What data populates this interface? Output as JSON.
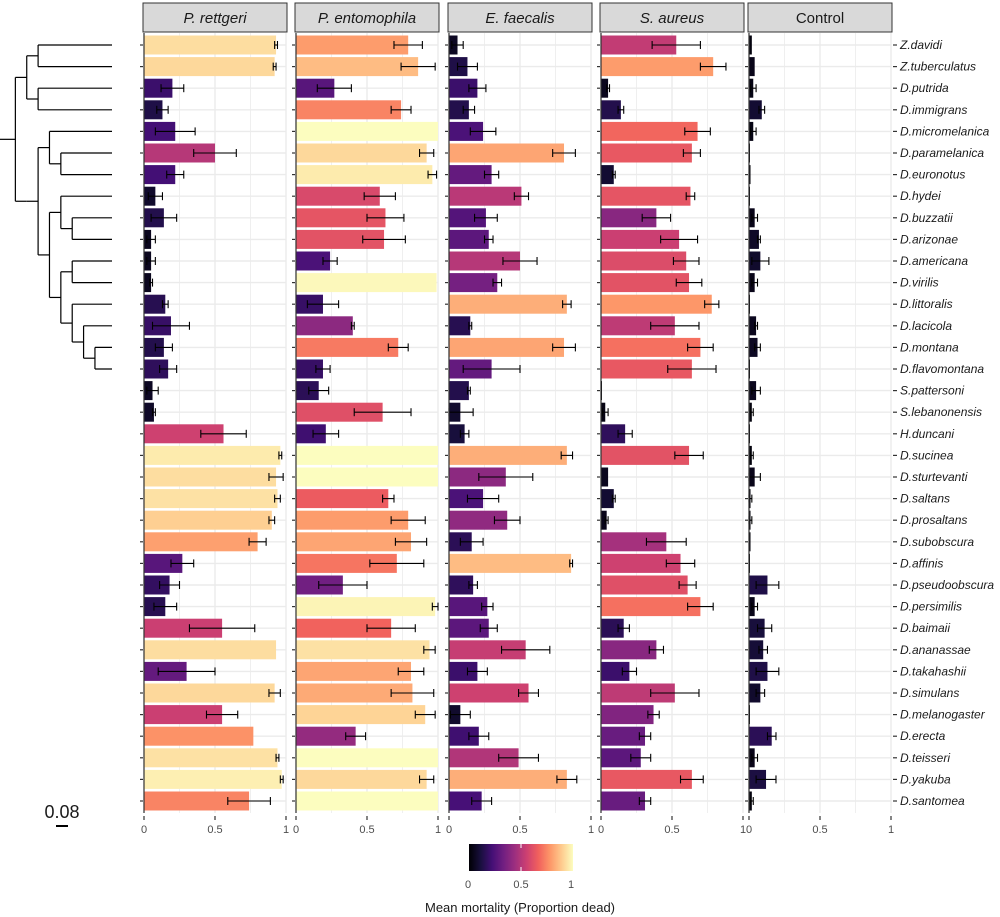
{
  "chart_data": {
    "type": "bar",
    "orientation": "horizontal",
    "xlabel": "",
    "xlim": [
      0,
      1
    ],
    "x_ticks": [
      "0",
      "0.5",
      "1"
    ],
    "grid": true,
    "legend": {
      "title": "Mean mortality (Proportion dead)",
      "type": "colorbar",
      "palette": "magma",
      "range": [
        0,
        1
      ],
      "ticks": [
        "0",
        "0.5",
        "1"
      ],
      "placement": "bottom-center",
      "stops": [
        "#000004",
        "#180f3d",
        "#440f76",
        "#721f81",
        "#9e2f7f",
        "#cd4071",
        "#f1605d",
        "#fd9668",
        "#feca8d",
        "#fcfdbf"
      ]
    },
    "tree_scale_label": "0.08",
    "tree": [
      "((((Z.davidi,Z.tuberculatus),(D.putrida,D.immigrans)),(((D.micromelanica,(D.paramelanica,D.euronotus)),((D.hydei,(D.buzzatii,D.arizonae)),((D.americana,D.virilis),(D.littoralis,(D.lacicola,(D.montana,D.flavomontana))))))))),((S.pattersoni,S.lebanonensis),((H.duncani,(D.sucinea,(D.sturtevanti,(D.saltans,D.prosaltans)))),(((D.subobscura,(D.affinis,(D.pseudoobscura,D.persimilis))),(D.baimaii,(D.ananassae,(D.takahashii,((D.simulans,D.melanogaster),(D.erecta,(D.teisseri,(D.yakuba,D.santomea))))))))))))"
    ],
    "categories": [
      "Z.davidi",
      "Z.tuberculatus",
      "D.putrida",
      "D.immigrans",
      "D.micromelanica",
      "D.paramelanica",
      "D.euronotus",
      "D.hydei",
      "D.buzzatii",
      "D.arizonae",
      "D.americana",
      "D.virilis",
      "D.littoralis",
      "D.lacicola",
      "D.montana",
      "D.flavomontana",
      "S.pattersoni",
      "S.lebanonensis",
      "H.duncani",
      "D.sucinea",
      "D.sturtevanti",
      "D.saltans",
      "D.prosaltans",
      "D.subobscura",
      "D.affinis",
      "D.pseudoobscura",
      "D.persimilis",
      "D.baimaii",
      "D.ananassae",
      "D.takahashii",
      "D.simulans",
      "D.melanogaster",
      "D.erecta",
      "D.teisseri",
      "D.yakuba",
      "D.santomea"
    ],
    "panels": [
      {
        "name": "P. rettgeri",
        "italic": true,
        "values": [
          0.93,
          0.92,
          0.2,
          0.13,
          0.22,
          0.5,
          0.22,
          0.08,
          0.14,
          0.05,
          0.05,
          0.05,
          0.15,
          0.19,
          0.14,
          0.17,
          0.06,
          0.07,
          0.56,
          0.96,
          0.93,
          0.94,
          0.9,
          0.8,
          0.27,
          0.18,
          0.15,
          0.55,
          0.93,
          0.3,
          0.92,
          0.55,
          0.77,
          0.94,
          0.97,
          0.74
        ],
        "err": [
          0.01,
          0.01,
          0.08,
          0.04,
          0.14,
          0.15,
          0.06,
          0.05,
          0.09,
          0.03,
          0.03,
          0.01,
          0.02,
          0.13,
          0.06,
          0.06,
          0.04,
          0.01,
          0.16,
          0.01,
          0.05,
          0.02,
          0.02,
          0.06,
          0.08,
          0.07,
          0.08,
          0.23,
          0.0,
          0.2,
          0.04,
          0.11,
          0.0,
          0.01,
          0.01,
          0.15
        ]
      },
      {
        "name": "P. entomophila",
        "italic": true,
        "values": [
          0.79,
          0.86,
          0.27,
          0.74,
          1.0,
          0.92,
          0.96,
          0.59,
          0.63,
          0.62,
          0.24,
          0.99,
          0.19,
          0.4,
          0.72,
          0.19,
          0.16,
          0.61,
          0.21,
          1.0,
          1.0,
          0.65,
          0.79,
          0.81,
          0.71,
          0.33,
          0.98,
          0.67,
          0.94,
          0.81,
          0.82,
          0.91,
          0.42,
          1.0,
          0.92,
          1.0
        ],
        "err": [
          0.1,
          0.12,
          0.12,
          0.07,
          0.0,
          0.05,
          0.03,
          0.11,
          0.13,
          0.15,
          0.05,
          0.0,
          0.11,
          0.01,
          0.07,
          0.05,
          0.07,
          0.2,
          0.09,
          0.0,
          0.0,
          0.04,
          0.12,
          0.11,
          0.19,
          0.17,
          0.02,
          0.17,
          0.04,
          0.09,
          0.15,
          0.07,
          0.07,
          0.0,
          0.05,
          0.0
        ]
      },
      {
        "name": "E. faecalis",
        "italic": true,
        "values": [
          0.06,
          0.13,
          0.2,
          0.14,
          0.24,
          0.81,
          0.3,
          0.51,
          0.26,
          0.28,
          0.5,
          0.34,
          0.83,
          0.15,
          0.81,
          0.3,
          0.14,
          0.08,
          0.11,
          0.83,
          0.4,
          0.24,
          0.41,
          0.16,
          0.86,
          0.17,
          0.27,
          0.28,
          0.54,
          0.2,
          0.56,
          0.08,
          0.21,
          0.49,
          0.83,
          0.23
        ],
        "err": [
          0.04,
          0.07,
          0.06,
          0.04,
          0.09,
          0.08,
          0.05,
          0.05,
          0.08,
          0.03,
          0.12,
          0.03,
          0.03,
          0.01,
          0.08,
          0.2,
          0.01,
          0.09,
          0.03,
          0.04,
          0.19,
          0.11,
          0.09,
          0.08,
          0.01,
          0.03,
          0.04,
          0.06,
          0.17,
          0.07,
          0.07,
          0.07,
          0.07,
          0.14,
          0.07,
          0.07
        ]
      },
      {
        "name": "S. aureus",
        "italic": true,
        "values": [
          0.53,
          0.79,
          0.05,
          0.14,
          0.68,
          0.64,
          0.09,
          0.63,
          0.39,
          0.55,
          0.6,
          0.62,
          0.78,
          0.52,
          0.7,
          0.64,
          0.0,
          0.03,
          0.17,
          0.62,
          0.05,
          0.09,
          0.04,
          0.46,
          0.56,
          0.61,
          0.7,
          0.16,
          0.39,
          0.2,
          0.52,
          0.37,
          0.31,
          0.28,
          0.64,
          0.31
        ],
        "err": [
          0.17,
          0.09,
          0.01,
          0.02,
          0.09,
          0.06,
          0.01,
          0.03,
          0.1,
          0.13,
          0.09,
          0.09,
          0.05,
          0.17,
          0.09,
          0.17,
          0.0,
          0.02,
          0.05,
          0.1,
          0.0,
          0.01,
          0.01,
          0.14,
          0.1,
          0.06,
          0.09,
          0.04,
          0.05,
          0.05,
          0.17,
          0.04,
          0.04,
          0.07,
          0.08,
          0.04
        ]
      },
      {
        "name": "Control",
        "italic": false,
        "values": [
          0.02,
          0.04,
          0.03,
          0.09,
          0.03,
          0.0,
          0.005,
          0.0,
          0.04,
          0.07,
          0.08,
          0.04,
          0.0,
          0.05,
          0.06,
          0.0,
          0.05,
          0.02,
          0.0,
          0.02,
          0.04,
          0.01,
          0.01,
          0.01,
          0.0,
          0.13,
          0.04,
          0.11,
          0.1,
          0.13,
          0.08,
          0.0,
          0.16,
          0.04,
          0.12,
          0.02
        ],
        "err": [
          0.0,
          0.0,
          0.02,
          0.02,
          0.02,
          0.0,
          0.0,
          0.0,
          0.02,
          0.01,
          0.06,
          0.02,
          0.0,
          0.01,
          0.02,
          0.0,
          0.03,
          0.01,
          0.0,
          0.01,
          0.04,
          0.01,
          0.01,
          0.0,
          0.0,
          0.08,
          0.02,
          0.05,
          0.03,
          0.08,
          0.03,
          0.0,
          0.03,
          0.02,
          0.07,
          0.01
        ]
      }
    ]
  }
}
